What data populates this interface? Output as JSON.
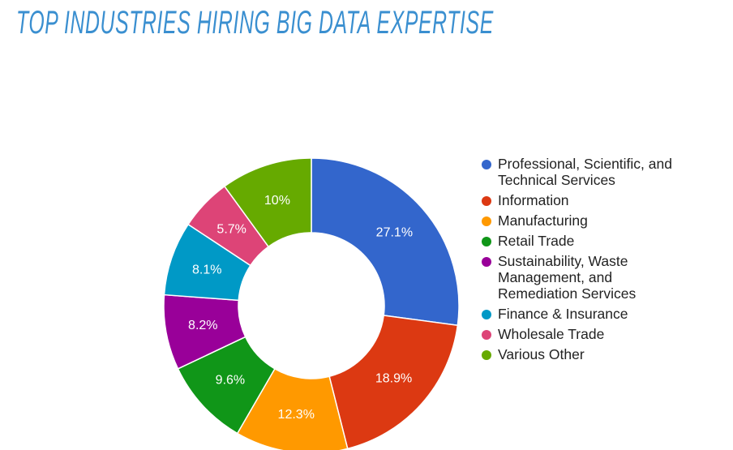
{
  "chart_data": {
    "type": "donut",
    "title": "TOP INDUSTRIES HIRING BIG DATA EXPERTISE",
    "categories": [
      "Professional, Scientific, and Technical Services",
      "Information",
      "Manufacturing",
      "Retail Trade",
      "Sustainability, Waste Management, and Remediation Services",
      "Finance & Insurance",
      "Wholesale Trade",
      "Various Other"
    ],
    "values": [
      27.1,
      18.9,
      12.3,
      9.6,
      8.2,
      8.1,
      5.7,
      10
    ],
    "value_labels": [
      "27.1%",
      "18.9%",
      "12.3%",
      "9.6%",
      "8.2%",
      "8.1%",
      "5.7%",
      "10%"
    ],
    "colors": [
      "#3366cc",
      "#dc3912",
      "#ff9900",
      "#109618",
      "#990099",
      "#0099c6",
      "#dd4477",
      "#66aa00"
    ],
    "legend": "right"
  }
}
